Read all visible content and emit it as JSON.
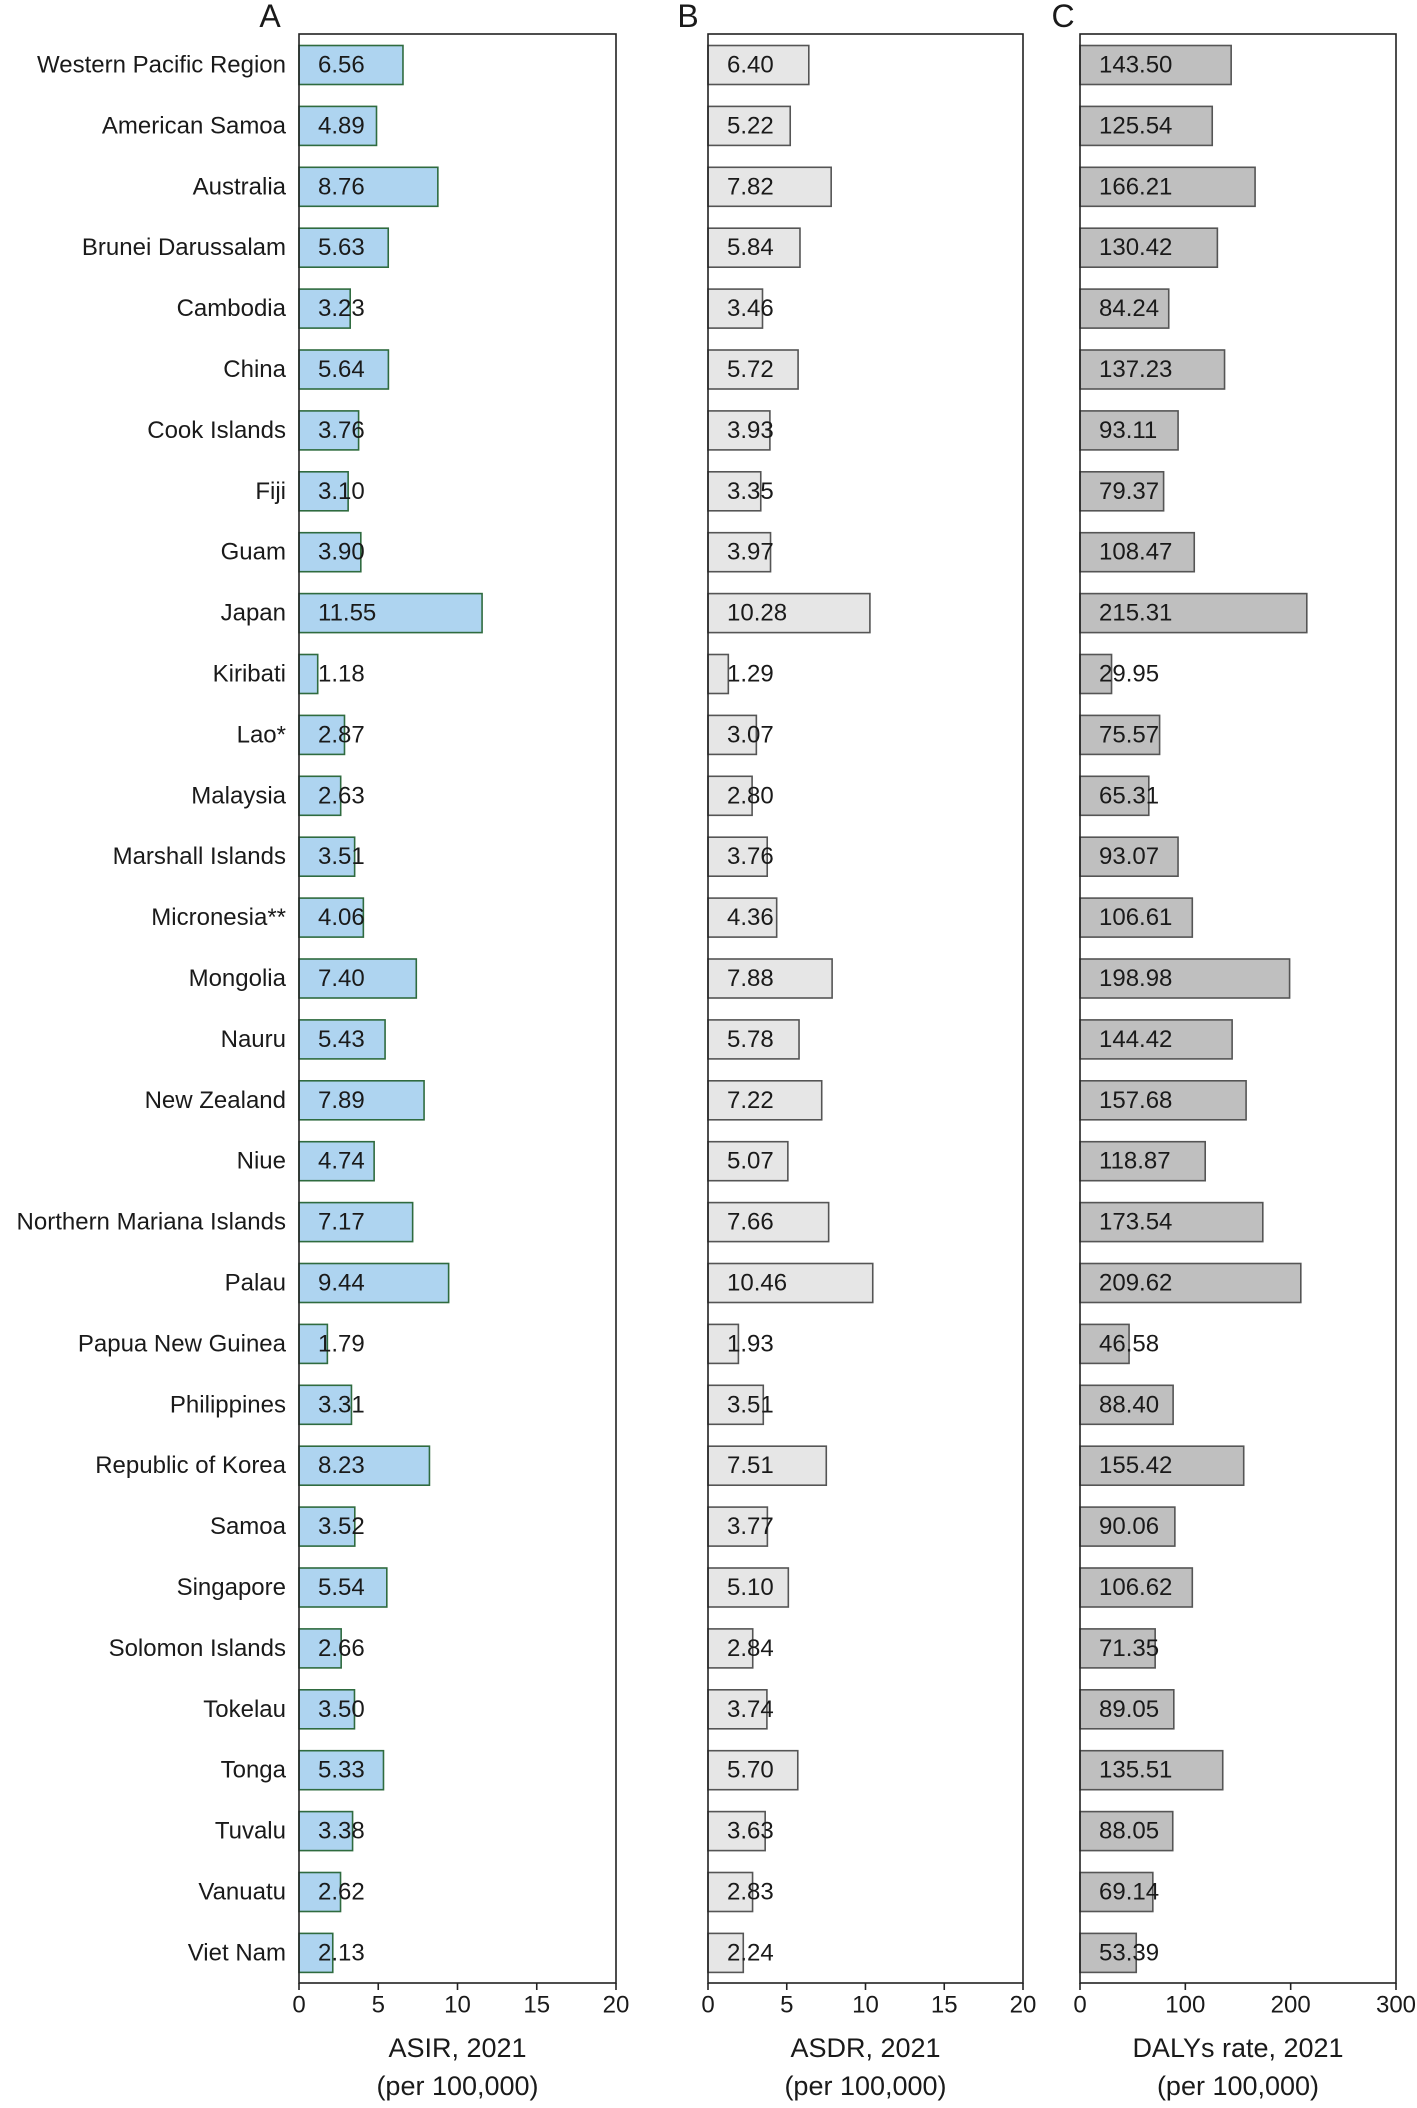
{
  "chart_data": {
    "type": "bar",
    "orientation": "horizontal",
    "categories": [
      "Western Pacific Region",
      "American Samoa",
      "Australia",
      "Brunei Darussalam",
      "Cambodia",
      "China",
      "Cook Islands",
      "Fiji",
      "Guam",
      "Japan",
      "Kiribati",
      "Lao*",
      "Malaysia",
      "Marshall Islands",
      "Micronesia**",
      "Mongolia",
      "Nauru",
      "New Zealand",
      "Niue",
      "Northern Mariana Islands",
      "Palau",
      "Papua New Guinea",
      "Philippines",
      "Republic of Korea",
      "Samoa",
      "Singapore",
      "Solomon Islands",
      "Tokelau",
      "Tonga",
      "Tuvalu",
      "Vanuatu",
      "Viet Nam"
    ],
    "panels": [
      {
        "letter": "A",
        "xlabel_line1": "ASIR, 2021",
        "xlabel_line2": "(per 100,000)",
        "xlim": [
          0,
          20
        ],
        "ticks": [
          0,
          5,
          10,
          15,
          20
        ],
        "bar_color": "#aed4f0",
        "values": [
          6.56,
          4.89,
          8.76,
          5.63,
          3.23,
          5.64,
          3.76,
          3.1,
          3.9,
          11.55,
          1.18,
          2.87,
          2.63,
          3.51,
          4.06,
          7.4,
          5.43,
          7.89,
          4.74,
          7.17,
          9.44,
          1.79,
          3.31,
          8.23,
          3.52,
          5.54,
          2.66,
          3.5,
          5.33,
          3.38,
          2.62,
          2.13
        ],
        "labels": [
          "6.56",
          "4.89",
          "8.76",
          "5.63",
          "3.23",
          "5.64",
          "3.76",
          "3.10",
          "3.90",
          "11.55",
          "1.18",
          "2.87",
          "2.63",
          "3.51",
          "4.06",
          "7.40",
          "5.43",
          "7.89",
          "4.74",
          "7.17",
          "9.44",
          "1.79",
          "3.31",
          "8.23",
          "3.52",
          "5.54",
          "2.66",
          "3.50",
          "5.33",
          "3.38",
          "2.62",
          "2.13"
        ]
      },
      {
        "letter": "B",
        "xlabel_line1": "ASDR, 2021",
        "xlabel_line2": "(per 100,000)",
        "xlim": [
          0,
          20
        ],
        "ticks": [
          0,
          5,
          10,
          15,
          20
        ],
        "bar_color": "#e6e6e6",
        "values": [
          6.4,
          5.22,
          7.82,
          5.84,
          3.46,
          5.72,
          3.93,
          3.35,
          3.97,
          10.28,
          1.29,
          3.07,
          2.8,
          3.76,
          4.36,
          7.88,
          5.78,
          7.22,
          5.07,
          7.66,
          10.46,
          1.93,
          3.51,
          7.51,
          3.77,
          5.1,
          2.84,
          3.74,
          5.7,
          3.63,
          2.83,
          2.24
        ],
        "labels": [
          "6.40",
          "5.22",
          "7.82",
          "5.84",
          "3.46",
          "5.72",
          "3.93",
          "3.35",
          "3.97",
          "10.28",
          "1.29",
          "3.07",
          "2.80",
          "3.76",
          "4.36",
          "7.88",
          "5.78",
          "7.22",
          "5.07",
          "7.66",
          "10.46",
          "1.93",
          "3.51",
          "7.51",
          "3.77",
          "5.10",
          "2.84",
          "3.74",
          "5.70",
          "3.63",
          "2.83",
          "2.24"
        ]
      },
      {
        "letter": "C",
        "xlabel_line1": "DALYs rate, 2021",
        "xlabel_line2": "(per 100,000)",
        "xlim": [
          0,
          300
        ],
        "ticks": [
          0,
          100,
          200,
          300
        ],
        "bar_color": "#bfbfbf",
        "values": [
          143.5,
          125.54,
          166.21,
          130.42,
          84.24,
          137.23,
          93.11,
          79.37,
          108.47,
          215.31,
          29.95,
          75.57,
          65.31,
          93.07,
          106.61,
          198.98,
          144.42,
          157.68,
          118.87,
          173.54,
          209.62,
          46.58,
          88.4,
          155.42,
          90.06,
          106.62,
          71.35,
          89.05,
          135.51,
          88.05,
          69.14,
          53.39
        ],
        "labels": [
          "143.50",
          "125.54",
          "166.21",
          "130.42",
          "84.24",
          "137.23",
          "93.11",
          "79.37",
          "108.47",
          "215.31",
          "29.95",
          "75.57",
          "65.31",
          "93.07",
          "106.61",
          "198.98",
          "144.42",
          "157.68",
          "118.87",
          "173.54",
          "209.62",
          "46.58",
          "88.40",
          "155.42",
          "90.06",
          "106.62",
          "71.35",
          "89.05",
          "135.51",
          "88.05",
          "69.14",
          "53.39"
        ]
      }
    ],
    "grid": false,
    "legend": "none"
  }
}
